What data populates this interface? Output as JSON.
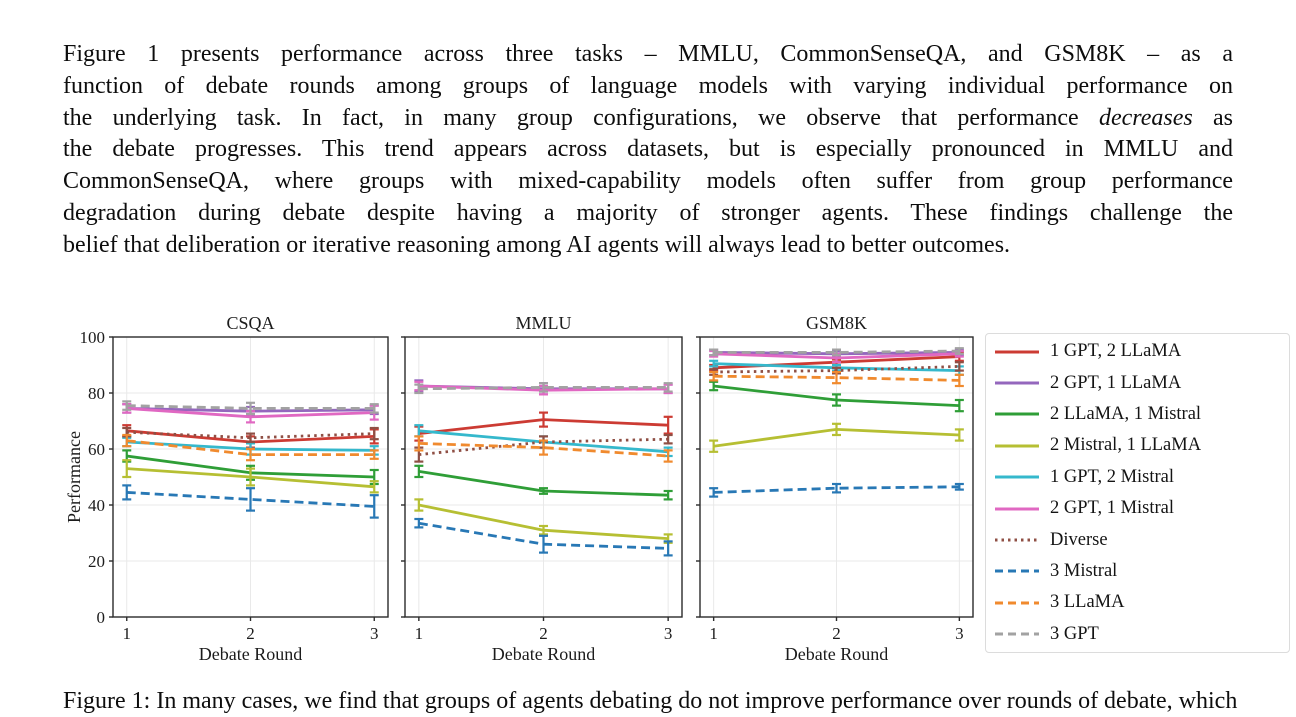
{
  "paragraph": {
    "lines": [
      [
        {
          "t": "Figure 1 presents performance across three tasks – MMLU, CommonSenseQA, and GSM8K – as a"
        }
      ],
      [
        {
          "t": "function of debate rounds among groups of language models with varying individual performance on"
        }
      ],
      [
        {
          "t": "the underlying task. In fact, in many group configurations, we observe that performance "
        },
        {
          "t": "decreases",
          "i": true
        },
        {
          "t": " as"
        }
      ],
      [
        {
          "t": "the debate progresses. This trend appears across datasets, but is especially pronounced in MMLU and"
        }
      ],
      [
        {
          "t": "CommonSenseQA, where groups with mixed-capability models often suffer from group performance"
        }
      ],
      [
        {
          "t": "degradation during debate despite having a majority of stronger agents. These findings challenge the"
        }
      ],
      [
        {
          "t": "belief that deliberation or iterative reasoning among AI agents will always lead to better outcomes."
        }
      ]
    ]
  },
  "caption": {
    "text": "Figure 1: In many cases, we find that groups of agents debating do not improve performance over rounds of debate, which"
  },
  "figure": {
    "ylabel": "Performance",
    "xlabel": "Debate Round",
    "x_tick_labels": [
      "1",
      "2",
      "3"
    ],
    "y_tick_labels": [
      "0",
      "20",
      "40",
      "60",
      "80",
      "100"
    ],
    "grid_color": "#e9e9e9",
    "spine_color": "#2b2b2b",
    "text_color": "#1c1c1c"
  },
  "series_styles": {
    "1 GPT, 2 LLaMA": {
      "color": "#cc3b33",
      "dash": "solid"
    },
    "2 GPT, 1 LLaMA": {
      "color": "#9467bd",
      "dash": "solid"
    },
    "2 LLaMA, 1 Mistral": {
      "color": "#2f9e37",
      "dash": "solid"
    },
    "2 Mistral, 1 LLaMA": {
      "color": "#b6bf33",
      "dash": "solid"
    },
    "1 GPT, 2 Mistral": {
      "color": "#35b8cc",
      "dash": "solid"
    },
    "2 GPT, 1 Mistral": {
      "color": "#e068c2",
      "dash": "solid"
    },
    "Diverse": {
      "color": "#8f4f44",
      "dash": "dotted"
    },
    "3 Mistral": {
      "color": "#2878b5",
      "dash": "dashed"
    },
    "3 LLaMA": {
      "color": "#f08a2e",
      "dash": "dashed"
    },
    "3 GPT": {
      "color": "#a2a2a2",
      "dash": "dashed"
    }
  },
  "legend": {
    "position": "right-outside",
    "entries": [
      "1 GPT, 2 LLaMA",
      "2 GPT, 1 LLaMA",
      "2 LLaMA, 1 Mistral",
      "2 Mistral, 1 LLaMA",
      "1 GPT, 2 Mistral",
      "2 GPT, 1 Mistral",
      "Diverse",
      "3 Mistral",
      "3 LLaMA",
      "3 GPT"
    ]
  },
  "chart_data": [
    {
      "type": "line",
      "title": "CSQA",
      "x": [
        1,
        2,
        3
      ],
      "xlabel": "Debate Round",
      "ylabel": "Performance",
      "ylim": [
        0,
        100
      ],
      "yticks": [
        0,
        20,
        40,
        60,
        80,
        100
      ],
      "grid": true,
      "series": [
        {
          "name": "1 GPT, 2 LLaMA",
          "values": [
            66.5,
            62.5,
            64.5
          ],
          "err": [
            2,
            2,
            2.5
          ]
        },
        {
          "name": "2 GPT, 1 LLaMA",
          "values": [
            74.5,
            73.5,
            74
          ],
          "err": [
            1.5,
            1.5,
            1.5
          ]
        },
        {
          "name": "2 LLaMA, 1 Mistral",
          "values": [
            57.5,
            51.5,
            50
          ],
          "err": [
            2,
            2.5,
            2.5
          ]
        },
        {
          "name": "2 Mistral, 1 LLaMA",
          "values": [
            53,
            50,
            46.5
          ],
          "err": [
            3,
            3,
            2
          ]
        },
        {
          "name": "1 GPT, 2 Mistral",
          "values": [
            62.5,
            60,
            59.5
          ],
          "err": [
            1.5,
            2,
            1.5
          ]
        },
        {
          "name": "2 GPT, 1 Mistral",
          "values": [
            74.5,
            71.5,
            73
          ],
          "err": [
            1.5,
            2,
            2.5
          ]
        },
        {
          "name": "Diverse",
          "values": [
            66,
            64,
            65.5
          ],
          "err": [
            1.5,
            1.5,
            2
          ]
        },
        {
          "name": "3 Mistral",
          "values": [
            44.5,
            42,
            39.5
          ],
          "err": [
            2.5,
            4,
            4
          ]
        },
        {
          "name": "3 LLaMA",
          "values": [
            63,
            58,
            58
          ],
          "err": [
            2,
            2,
            1.5
          ]
        },
        {
          "name": "3 GPT",
          "values": [
            75.5,
            74.5,
            74.5
          ],
          "err": [
            1.5,
            2,
            1.5
          ]
        }
      ]
    },
    {
      "type": "line",
      "title": "MMLU",
      "x": [
        1,
        2,
        3
      ],
      "xlabel": "Debate Round",
      "ylabel": "",
      "ylim": [
        0,
        100
      ],
      "yticks": [
        0,
        20,
        40,
        60,
        80,
        100
      ],
      "grid": true,
      "series": [
        {
          "name": "1 GPT, 2 LLaMA",
          "values": [
            65.5,
            70.5,
            68.5
          ],
          "err": [
            2.5,
            2.5,
            3
          ]
        },
        {
          "name": "2 GPT, 1 LLaMA",
          "values": [
            82.5,
            81.5,
            81.5
          ],
          "err": [
            2,
            2,
            1.5
          ]
        },
        {
          "name": "2 LLaMA, 1 Mistral",
          "values": [
            52,
            45,
            43.5
          ],
          "err": [
            2,
            1,
            1.5
          ]
        },
        {
          "name": "2 Mistral, 1 LLaMA",
          "values": [
            40,
            31,
            28
          ],
          "err": [
            2,
            1.5,
            1.5
          ]
        },
        {
          "name": "1 GPT, 2 Mistral",
          "values": [
            66.5,
            62.5,
            59
          ],
          "err": [
            2,
            2,
            1.5
          ]
        },
        {
          "name": "2 GPT, 1 Mistral",
          "values": [
            82.5,
            81,
            81.5
          ],
          "err": [
            1.5,
            1.5,
            1.5
          ]
        },
        {
          "name": "Diverse",
          "values": [
            58,
            62.5,
            63.5
          ],
          "err": [
            2.5,
            2,
            1.5
          ]
        },
        {
          "name": "3 Mistral",
          "values": [
            33.5,
            26,
            24.5
          ],
          "err": [
            1.5,
            3,
            2.5
          ]
        },
        {
          "name": "3 LLaMA",
          "values": [
            62,
            60.5,
            57.5
          ],
          "err": [
            2.5,
            2.5,
            2
          ]
        },
        {
          "name": "3 GPT",
          "values": [
            81.5,
            82,
            82
          ],
          "err": [
            1.5,
            1.5,
            1.5
          ]
        }
      ]
    },
    {
      "type": "line",
      "title": "GSM8K",
      "x": [
        1,
        2,
        3
      ],
      "xlabel": "Debate Round",
      "ylabel": "",
      "ylim": [
        0,
        100
      ],
      "yticks": [
        0,
        20,
        40,
        60,
        80,
        100
      ],
      "grid": true,
      "series": [
        {
          "name": "1 GPT, 2 LLaMA",
          "values": [
            89,
            91,
            93
          ],
          "err": [
            1,
            1,
            1.5
          ]
        },
        {
          "name": "2 GPT, 1 LLaMA",
          "values": [
            94.5,
            94,
            94.5
          ],
          "err": [
            1,
            1,
            1
          ]
        },
        {
          "name": "2 LLaMA, 1 Mistral",
          "values": [
            82.5,
            77.5,
            75.5
          ],
          "err": [
            1.5,
            2,
            2
          ]
        },
        {
          "name": "2 Mistral, 1 LLaMA",
          "values": [
            61,
            67,
            65
          ],
          "err": [
            2,
            2,
            2
          ]
        },
        {
          "name": "1 GPT, 2 Mistral",
          "values": [
            90.5,
            89,
            88
          ],
          "err": [
            1,
            1,
            1.5
          ]
        },
        {
          "name": "2 GPT, 1 Mistral",
          "values": [
            94,
            92.5,
            94
          ],
          "err": [
            1,
            1.5,
            1
          ]
        },
        {
          "name": "Diverse",
          "values": [
            87.5,
            88,
            89.5
          ],
          "err": [
            1,
            1,
            1.5
          ]
        },
        {
          "name": "3 Mistral",
          "values": [
            44.5,
            46,
            46.5
          ],
          "err": [
            1.5,
            1.5,
            1
          ]
        },
        {
          "name": "3 LLaMA",
          "values": [
            86,
            85.5,
            84.5
          ],
          "err": [
            1.5,
            2,
            2
          ]
        },
        {
          "name": "3 GPT",
          "values": [
            94.5,
            94.5,
            95
          ],
          "err": [
            1,
            1,
            1
          ]
        }
      ]
    }
  ]
}
